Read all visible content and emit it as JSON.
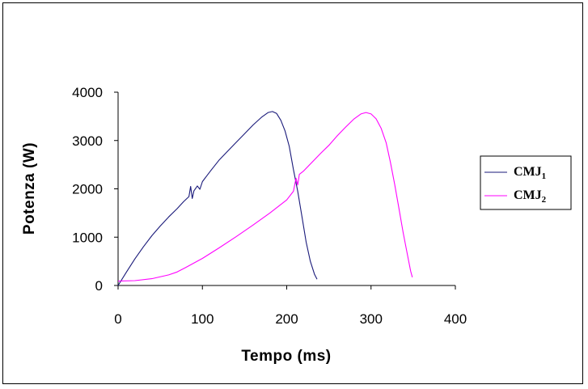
{
  "chart_data": {
    "type": "line",
    "title": "",
    "xlabel": "Tempo (ms)",
    "ylabel": "Potenza (W)",
    "xlim": [
      0,
      400
    ],
    "ylim": [
      0,
      4000
    ],
    "xticks": [
      0,
      100,
      200,
      300,
      400
    ],
    "yticks": [
      0,
      1000,
      2000,
      3000,
      4000
    ],
    "x_tick_labels": [
      "0",
      "100",
      "200",
      "300",
      "400"
    ],
    "y_tick_labels": [
      "0",
      "1000",
      "2000",
      "3000",
      "4000"
    ],
    "grid": false,
    "legend_position": "right",
    "series": [
      {
        "name": "CMJ1",
        "legend_main": "CMJ",
        "legend_sub": "1",
        "color": "#1a1a7a",
        "points": [
          [
            0,
            0
          ],
          [
            10,
            280
          ],
          [
            20,
            550
          ],
          [
            30,
            800
          ],
          [
            40,
            1030
          ],
          [
            50,
            1230
          ],
          [
            60,
            1420
          ],
          [
            70,
            1590
          ],
          [
            78,
            1740
          ],
          [
            84,
            1840
          ],
          [
            86,
            2050
          ],
          [
            88,
            1800
          ],
          [
            90,
            1960
          ],
          [
            94,
            2060
          ],
          [
            97,
            1990
          ],
          [
            100,
            2150
          ],
          [
            110,
            2380
          ],
          [
            120,
            2600
          ],
          [
            130,
            2780
          ],
          [
            140,
            2960
          ],
          [
            150,
            3140
          ],
          [
            160,
            3320
          ],
          [
            170,
            3480
          ],
          [
            178,
            3580
          ],
          [
            183,
            3600
          ],
          [
            188,
            3560
          ],
          [
            193,
            3420
          ],
          [
            198,
            3200
          ],
          [
            203,
            2880
          ],
          [
            208,
            2400
          ],
          [
            213,
            1950
          ],
          [
            218,
            1430
          ],
          [
            223,
            900
          ],
          [
            228,
            500
          ],
          [
            233,
            230
          ],
          [
            236,
            130
          ]
        ]
      },
      {
        "name": "CMJ2",
        "legend_main": "CMJ",
        "legend_sub": "2",
        "color": "#ff00ff",
        "points": [
          [
            0,
            90
          ],
          [
            20,
            100
          ],
          [
            40,
            140
          ],
          [
            60,
            220
          ],
          [
            70,
            280
          ],
          [
            80,
            370
          ],
          [
            100,
            560
          ],
          [
            120,
            780
          ],
          [
            140,
            1010
          ],
          [
            160,
            1250
          ],
          [
            180,
            1500
          ],
          [
            200,
            1770
          ],
          [
            208,
            1950
          ],
          [
            211,
            2220
          ],
          [
            213,
            2080
          ],
          [
            215,
            2300
          ],
          [
            220,
            2370
          ],
          [
            230,
            2550
          ],
          [
            240,
            2730
          ],
          [
            250,
            2900
          ],
          [
            260,
            3100
          ],
          [
            270,
            3280
          ],
          [
            280,
            3450
          ],
          [
            288,
            3550
          ],
          [
            294,
            3580
          ],
          [
            300,
            3550
          ],
          [
            306,
            3450
          ],
          [
            312,
            3250
          ],
          [
            318,
            2950
          ],
          [
            323,
            2550
          ],
          [
            328,
            2100
          ],
          [
            333,
            1600
          ],
          [
            338,
            1100
          ],
          [
            343,
            650
          ],
          [
            347,
            300
          ],
          [
            349,
            170
          ]
        ]
      }
    ]
  }
}
